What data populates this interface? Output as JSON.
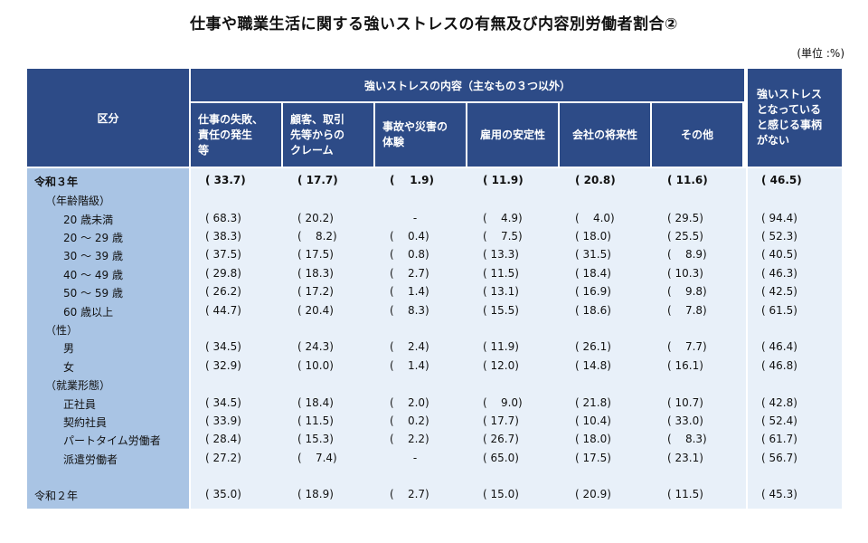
{
  "title": "仕事や職業生活に関する強いストレスの有無及び内容別労働者割合②",
  "unit": "(単位 :%)",
  "header": {
    "category": "区分",
    "group": "強いストレスの内容（主なもの３つ以外）",
    "columns": [
      "仕事の失敗、責任の発生等",
      "顧客、取引先等からのクレーム",
      "事故や災害の体験",
      "雇用の安定性",
      "会社の将来性",
      "その他"
    ],
    "columns_lines": [
      [
        "仕事の失敗、",
        "責任の発生",
        "等"
      ],
      [
        "顧客、取引",
        "先等からの",
        "クレーム"
      ],
      [
        "事故や災害の",
        "体験"
      ],
      [
        "雇用の安定性"
      ],
      [
        "会社の将来性"
      ],
      [
        "その他"
      ]
    ],
    "last_lines": [
      "強いストレス",
      "となっている",
      "と感じる事柄",
      "がない"
    ]
  },
  "rows": [
    {
      "label": "令和３年",
      "level": 0,
      "bold": true,
      "values": [
        "( 33.7)",
        "( 17.7)",
        "(    1.9)",
        "( 11.9)",
        "( 20.8)",
        "( 11.6)",
        "( 46.5)"
      ]
    },
    {
      "label": "（年齢階級）",
      "level": 1,
      "values": []
    },
    {
      "label": "20 歳未満",
      "level": 2,
      "values": [
        "( 68.3)",
        "( 20.2)",
        "-",
        "(    4.9)",
        "(    4.0)",
        "( 29.5)",
        "( 94.4)"
      ]
    },
    {
      "label": "20 ～ 29 歳",
      "level": 2,
      "values": [
        "( 38.3)",
        "(    8.2)",
        "(    0.4)",
        "(    7.5)",
        "( 18.0)",
        "( 25.5)",
        "( 52.3)"
      ]
    },
    {
      "label": "30 ～ 39 歳",
      "level": 2,
      "values": [
        "( 37.5)",
        "( 17.5)",
        "(    0.8)",
        "( 13.3)",
        "( 31.5)",
        "(    8.9)",
        "( 40.5)"
      ]
    },
    {
      "label": "40 ～ 49 歳",
      "level": 2,
      "values": [
        "( 29.8)",
        "( 18.3)",
        "(    2.7)",
        "( 11.5)",
        "( 18.4)",
        "( 10.3)",
        "( 46.3)"
      ]
    },
    {
      "label": "50 ～ 59 歳",
      "level": 2,
      "values": [
        "( 26.2)",
        "( 17.2)",
        "(    1.4)",
        "( 13.1)",
        "( 16.9)",
        "(    9.8)",
        "( 42.5)"
      ]
    },
    {
      "label": "60 歳以上",
      "level": 2,
      "values": [
        "( 44.7)",
        "( 20.4)",
        "(    8.3)",
        "( 15.5)",
        "( 18.6)",
        "(    7.8)",
        "( 61.5)"
      ]
    },
    {
      "label": "（性）",
      "level": 1,
      "values": []
    },
    {
      "label": "男",
      "level": 2,
      "values": [
        "( 34.5)",
        "( 24.3)",
        "(    2.4)",
        "( 11.9)",
        "( 26.1)",
        "(    7.7)",
        "( 46.4)"
      ]
    },
    {
      "label": "女",
      "level": 2,
      "values": [
        "( 32.9)",
        "( 10.0)",
        "(    1.4)",
        "( 12.0)",
        "( 14.8)",
        "( 16.1)",
        "( 46.8)"
      ]
    },
    {
      "label": "（就業形態）",
      "level": 1,
      "values": []
    },
    {
      "label": "正社員",
      "level": 2,
      "values": [
        "( 34.5)",
        "( 18.4)",
        "(    2.0)",
        "(    9.0)",
        "( 21.8)",
        "( 10.7)",
        "( 42.8)"
      ]
    },
    {
      "label": "契約社員",
      "level": 2,
      "values": [
        "( 33.9)",
        "( 11.5)",
        "(    0.2)",
        "( 17.7)",
        "( 10.4)",
        "( 33.0)",
        "( 52.4)"
      ]
    },
    {
      "label": "パートタイム労働者",
      "level": 2,
      "values": [
        "( 28.4)",
        "( 15.3)",
        "(    2.2)",
        "( 26.7)",
        "( 18.0)",
        "(    8.3)",
        "( 61.7)"
      ]
    },
    {
      "label": "派遣労働者",
      "level": 2,
      "values": [
        "( 27.2)",
        "(    7.4)",
        "-",
        "( 65.0)",
        "( 17.5)",
        "( 23.1)",
        "( 56.7)"
      ]
    },
    {
      "label": "令和２年",
      "level": 0,
      "values": [
        "( 35.0)",
        "( 18.9)",
        "(    2.7)",
        "( 15.0)",
        "( 20.9)",
        "( 11.5)",
        "( 45.3)"
      ]
    }
  ]
}
